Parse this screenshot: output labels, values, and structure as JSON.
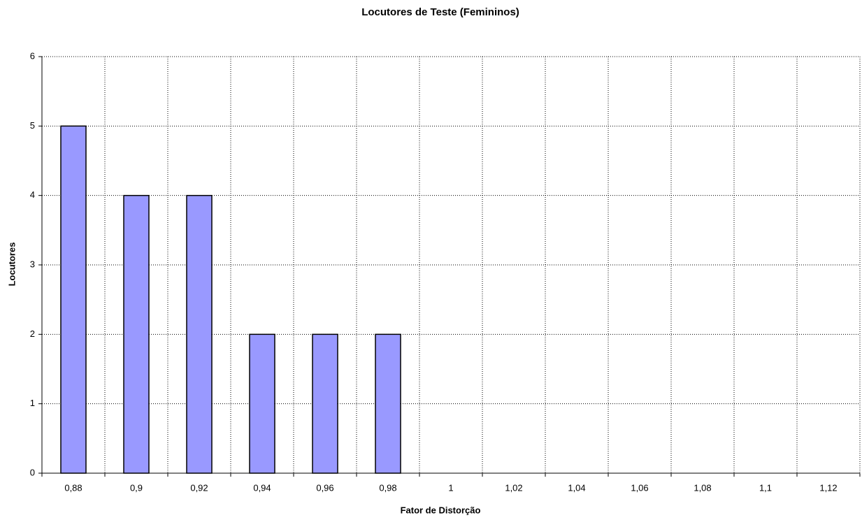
{
  "chart_data": {
    "type": "bar",
    "title": "Locutores de Teste (Femininos)",
    "x_label": "Fator de Distorção",
    "y_label": "Locutores",
    "categories": [
      "0,88",
      "0,9",
      "0,92",
      "0,94",
      "0,96",
      "0,98",
      "1",
      "1,02",
      "1,04",
      "1,06",
      "1,08",
      "1,1",
      "1,12"
    ],
    "values": [
      5,
      4,
      4,
      2,
      2,
      2,
      0,
      0,
      0,
      0,
      0,
      0,
      0
    ],
    "color": "#9999ff",
    "ylim": [
      0,
      6
    ],
    "yticks": [
      0,
      1,
      2,
      3,
      4,
      5,
      6
    ],
    "grid": true
  }
}
